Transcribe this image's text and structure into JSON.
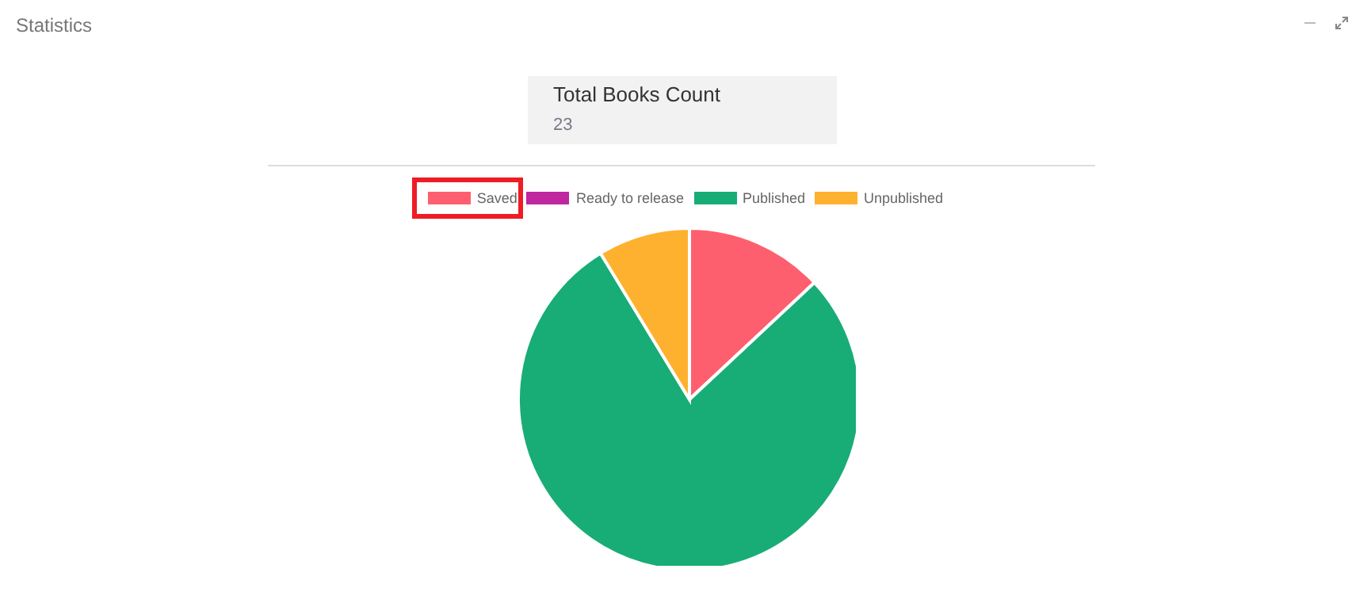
{
  "chart_data": {
    "type": "pie",
    "title": "Statistics",
    "annotations": [
      "Total Books Count",
      "23"
    ],
    "categories": [
      "Saved",
      "Ready to release",
      "Published",
      "Unpublished"
    ],
    "values": [
      13.04,
      0,
      78.26,
      8.7
    ],
    "colors": [
      "#fe5f6e",
      "#c026a0",
      "#18ad76",
      "#feb12e"
    ],
    "legend": "top"
  }
}
